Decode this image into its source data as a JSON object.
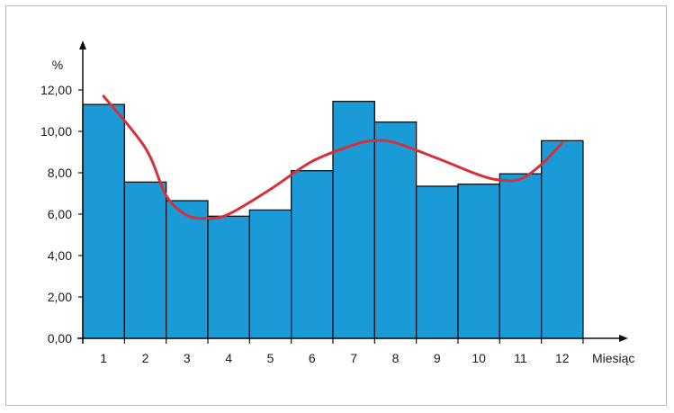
{
  "chart_data": {
    "type": "bar",
    "categories": [
      "1",
      "2",
      "3",
      "4",
      "5",
      "6",
      "7",
      "8",
      "9",
      "10",
      "11",
      "12"
    ],
    "values": [
      11.3,
      7.55,
      6.65,
      5.9,
      6.2,
      8.1,
      11.45,
      10.45,
      7.35,
      7.45,
      7.95,
      9.55
    ],
    "trend_line": [
      {
        "x": 1.0,
        "y": 11.7
      },
      {
        "x": 2.0,
        "y": 9.2
      },
      {
        "x": 2.5,
        "y": 6.9
      },
      {
        "x": 3.0,
        "y": 5.95
      },
      {
        "x": 3.5,
        "y": 5.8
      },
      {
        "x": 4.0,
        "y": 6.0
      },
      {
        "x": 5.0,
        "y": 7.2
      },
      {
        "x": 6.0,
        "y": 8.55
      },
      {
        "x": 7.0,
        "y": 9.35
      },
      {
        "x": 7.5,
        "y": 9.55
      },
      {
        "x": 8.0,
        "y": 9.45
      },
      {
        "x": 9.0,
        "y": 8.7
      },
      {
        "x": 10.0,
        "y": 7.9
      },
      {
        "x": 10.5,
        "y": 7.65
      },
      {
        "x": 11.0,
        "y": 7.7
      },
      {
        "x": 11.5,
        "y": 8.4
      },
      {
        "x": 12.0,
        "y": 9.45
      }
    ],
    "title": "",
    "xlabel": "Miesiąc",
    "ylabel": "%",
    "ylim": [
      0,
      12
    ],
    "yticks": [
      "0,00",
      "2,00",
      "4,00",
      "6,00",
      "8,00",
      "10,00",
      "12,00"
    ],
    "grid": false,
    "colors": {
      "bar_fill": "#1a9ad6",
      "bar_stroke": "#111111",
      "trend": "#d8303a",
      "axis": "#111111"
    }
  }
}
